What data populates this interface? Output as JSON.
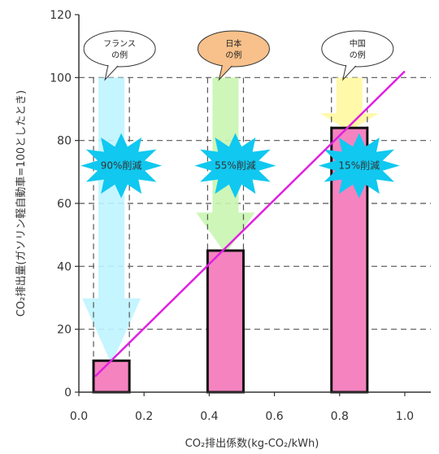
{
  "chart_data": {
    "type": "bar",
    "title": "",
    "xlabel": "CO₂排出係数(kg-CO₂/kWh)",
    "ylabel": "CO₂排出量(ガソリン軽自動車=100としたとき)",
    "xlim": [
      0,
      1.08
    ],
    "ylim": [
      0,
      120
    ],
    "x_ticks": [
      "0.0",
      "0.2",
      "0.4",
      "0.6",
      "0.8",
      "1.0"
    ],
    "y_ticks": [
      "0",
      "20",
      "40",
      "60",
      "80",
      "100",
      "120"
    ],
    "grid": "horizontal dashed",
    "bars": [
      {
        "x": 0.1,
        "value": 10,
        "width": 0.11
      },
      {
        "x": 0.45,
        "value": 45,
        "width": 0.11
      },
      {
        "x": 0.83,
        "value": 84,
        "width": 0.11
      }
    ],
    "trend_line": {
      "x": [
        0.05,
        1.0
      ],
      "y": [
        5,
        102
      ],
      "color": "#e020e0"
    },
    "reductions": [
      {
        "label": "90%削減",
        "color": "#bff4ff"
      },
      {
        "label": "55%削減",
        "color": "#c8f5b0"
      },
      {
        "label": "15%削減",
        "color": "#fff8a0"
      }
    ],
    "callouts": [
      {
        "line1": "フランス",
        "line2": "の例",
        "fill": "#ffffff"
      },
      {
        "line1": "日本",
        "line2": "の例",
        "fill": "#f8c08a"
      },
      {
        "line1": "中国",
        "line2": "の例",
        "fill": "#ffffff"
      }
    ],
    "colors": {
      "bar": "#f583c0",
      "burst": "#10c8f0"
    }
  }
}
